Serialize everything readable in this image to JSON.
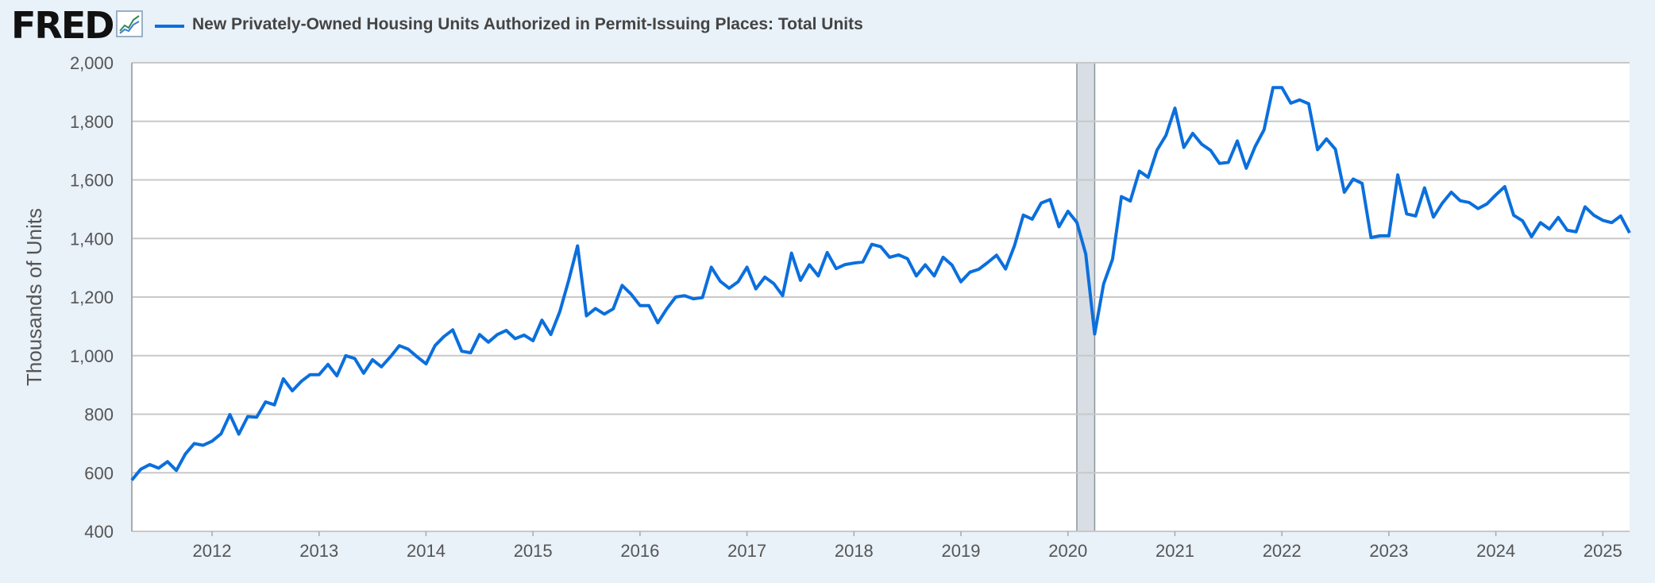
{
  "header": {
    "logo_text": "FRED",
    "logo_mark": "®",
    "graph_icon": "line-graph-icon"
  },
  "colors": {
    "series": "#0b6fdd",
    "recession": "#d9dee4",
    "background": "#e9f1f9",
    "plot_background": "#ffffff",
    "grid": "#c8c8c8"
  },
  "chart_data": {
    "type": "line",
    "title": "",
    "xlabel": "",
    "ylabel": "Thousands of Units",
    "ylim": [
      400,
      2000
    ],
    "xlim": [
      "2011-04",
      "2025-04"
    ],
    "grid": true,
    "legend_position": "top-left",
    "y_ticks": [
      "400",
      "600",
      "800",
      "1,000",
      "1,200",
      "1,400",
      "1,600",
      "1,800",
      "2,000"
    ],
    "x_ticks": [
      "2012",
      "2013",
      "2014",
      "2015",
      "2016",
      "2017",
      "2018",
      "2019",
      "2020",
      "2021",
      "2022",
      "2023",
      "2024",
      "2025"
    ],
    "recession_shading": [
      [
        "2020-02",
        "2020-04"
      ]
    ],
    "series": [
      {
        "name": "New Privately-Owned Housing Units Authorized in Permit-Issuing Places: Total Units",
        "start": "2011-04",
        "frequency": "monthly",
        "values": [
          575,
          612,
          628,
          616,
          638,
          608,
          664,
          700,
          694,
          708,
          733,
          799,
          732,
          792,
          790,
          842,
          832,
          921,
          880,
          912,
          935,
          935,
          970,
          931,
          1000,
          990,
          940,
          986,
          962,
          996,
          1034,
          1022,
          996,
          972,
          1034,
          1065,
          1088,
          1015,
          1010,
          1072,
          1046,
          1072,
          1086,
          1058,
          1070,
          1051,
          1121,
          1072,
          1150,
          1257,
          1375,
          1136,
          1161,
          1142,
          1160,
          1240,
          1210,
          1171,
          1171,
          1112,
          1160,
          1200,
          1205,
          1194,
          1198,
          1302,
          1254,
          1230,
          1252,
          1302,
          1228,
          1268,
          1246,
          1205,
          1350,
          1257,
          1310,
          1272,
          1352,
          1297,
          1311,
          1316,
          1320,
          1380,
          1372,
          1336,
          1344,
          1331,
          1272,
          1310,
          1272,
          1336,
          1309,
          1252,
          1285,
          1295,
          1318,
          1343,
          1296,
          1375,
          1480,
          1466,
          1521,
          1533,
          1440,
          1493,
          1455,
          1347,
          1074,
          1245,
          1329,
          1543,
          1528,
          1630,
          1609,
          1702,
          1752,
          1845,
          1711,
          1759,
          1722,
          1701,
          1656,
          1660,
          1733,
          1640,
          1714,
          1771,
          1915,
          1915,
          1862,
          1873,
          1860,
          1703,
          1740,
          1705,
          1558,
          1603,
          1588,
          1403,
          1409,
          1409,
          1617,
          1484,
          1477,
          1573,
          1473,
          1521,
          1558,
          1529,
          1523,
          1502,
          1518,
          1549,
          1577,
          1479,
          1460,
          1406,
          1454,
          1432,
          1472,
          1428,
          1423,
          1508,
          1479,
          1462,
          1454,
          1477,
          1419
        ]
      }
    ]
  }
}
